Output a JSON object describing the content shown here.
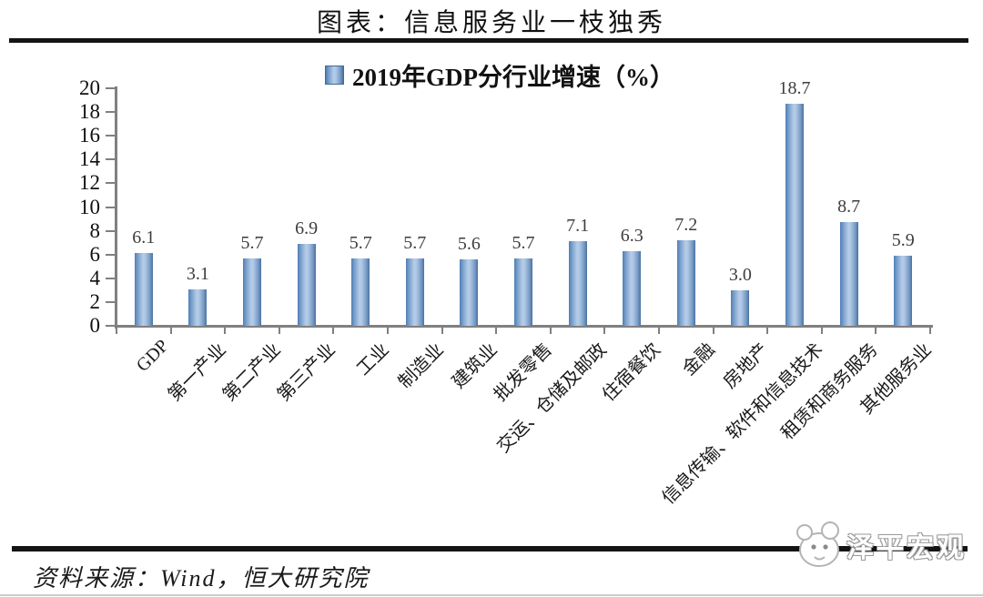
{
  "header": {
    "title": "图表：信息服务业一枝独秀"
  },
  "legend": {
    "label": "2019年GDP分行业增速（%）"
  },
  "chart_data": {
    "type": "bar",
    "title": "2019年GDP分行业增速（%）",
    "categories": [
      "GDP",
      "第一产业",
      "第二产业",
      "第三产业",
      "工业",
      "制造业",
      "建筑业",
      "批发零售",
      "交运、仓储及邮政",
      "住宿餐饮",
      "金融",
      "房地产",
      "信息传输、软件和信息技术",
      "租赁和商务服务",
      "其他服务业"
    ],
    "values": [
      6.1,
      3.1,
      5.7,
      6.9,
      5.7,
      5.7,
      5.6,
      5.7,
      7.1,
      6.3,
      7.2,
      3.0,
      18.7,
      8.7,
      5.9
    ],
    "value_labels": [
      "6.1",
      "3.1",
      "5.7",
      "6.9",
      "5.7",
      "5.7",
      "5.6",
      "5.7",
      "7.1",
      "6.3",
      "7.2",
      "3.0",
      "18.7",
      "8.7",
      "5.9"
    ],
    "xlabel": "",
    "ylabel": "",
    "ylim": [
      0,
      20
    ],
    "y_ticks": [
      0,
      2,
      4,
      6,
      8,
      10,
      12,
      14,
      16,
      18,
      20
    ],
    "grid": false,
    "legend_position": "top-center",
    "x_label_rotation_deg": 45
  },
  "footer": {
    "source": "资料来源：Wind，恒大研究院",
    "watermark": "泽平宏观"
  },
  "colors": {
    "bar_edge": "#4e7eb5",
    "bar_center": "#b5cde8",
    "axis": "#808080",
    "rule": "#141414",
    "value_label": "#3d3d3d"
  }
}
